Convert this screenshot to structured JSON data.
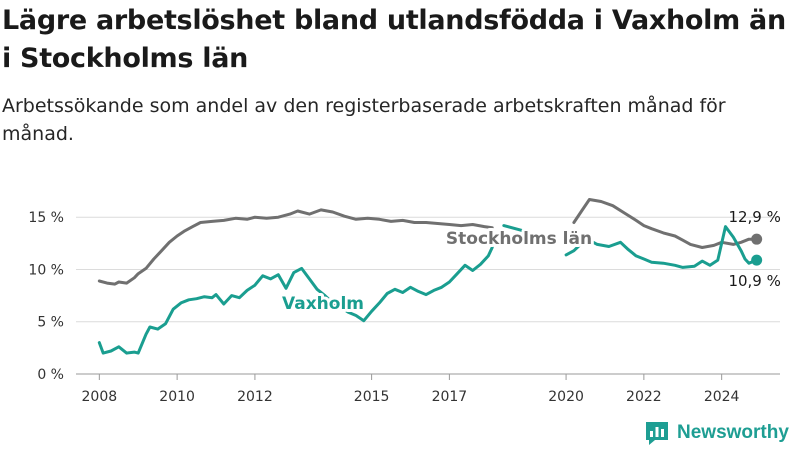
{
  "title": "Lägre arbetslöshet bland utlandsfödda i Vaxholm än i Stockholms län",
  "subtitle": "Arbetssökande som andel av den registerbaserade arbetskraften månad för månad.",
  "brand": {
    "name": "Newsworthy",
    "icon": "newsworthy-logo-icon",
    "color": "#1e9e93"
  },
  "chart_data": {
    "type": "line",
    "title": "Lägre arbetslöshet bland utlandsfödda i Vaxholm än i Stockholms län",
    "subtitle": "Arbetssökande som andel av den registerbaserade arbetskraften månad för månad.",
    "xlabel": "",
    "ylabel": "",
    "x_ticks": [
      {
        "value": 2008,
        "label": "2008"
      },
      {
        "value": 2010,
        "label": "2010"
      },
      {
        "value": 2012,
        "label": "2012"
      },
      {
        "value": 2015,
        "label": "2015"
      },
      {
        "value": 2017,
        "label": "2017"
      },
      {
        "value": 2020,
        "label": "2020"
      },
      {
        "value": 2022,
        "label": "2022"
      },
      {
        "value": 2024,
        "label": "2024"
      }
    ],
    "y_ticks": [
      {
        "value": 0,
        "label": "0 %"
      },
      {
        "value": 5,
        "label": "5 %"
      },
      {
        "value": 10,
        "label": "10 %"
      },
      {
        "value": 15,
        "label": "15 %"
      }
    ],
    "xlim": [
      2007.4,
      2025.5
    ],
    "ylim": [
      0,
      15.5
    ],
    "grid": true,
    "series": [
      {
        "name": "Stockholms län",
        "color": "#707070",
        "end_label": "12,9 %",
        "points": [
          [
            2008.0,
            8.9
          ],
          [
            2008.2,
            8.7
          ],
          [
            2008.4,
            8.6
          ],
          [
            2008.5,
            8.8
          ],
          [
            2008.7,
            8.7
          ],
          [
            2008.9,
            9.2
          ],
          [
            2009.0,
            9.6
          ],
          [
            2009.2,
            10.1
          ],
          [
            2009.4,
            11.0
          ],
          [
            2009.6,
            11.8
          ],
          [
            2009.8,
            12.6
          ],
          [
            2010.0,
            13.2
          ],
          [
            2010.2,
            13.7
          ],
          [
            2010.4,
            14.1
          ],
          [
            2010.6,
            14.5
          ],
          [
            2010.9,
            14.6
          ],
          [
            2011.2,
            14.7
          ],
          [
            2011.5,
            14.9
          ],
          [
            2011.8,
            14.8
          ],
          [
            2012.0,
            15.0
          ],
          [
            2012.3,
            14.9
          ],
          [
            2012.6,
            15.0
          ],
          [
            2012.9,
            15.3
          ],
          [
            2013.1,
            15.6
          ],
          [
            2013.4,
            15.3
          ],
          [
            2013.7,
            15.7
          ],
          [
            2014.0,
            15.5
          ],
          [
            2014.3,
            15.1
          ],
          [
            2014.6,
            14.8
          ],
          [
            2014.9,
            14.9
          ],
          [
            2015.2,
            14.8
          ],
          [
            2015.5,
            14.6
          ],
          [
            2015.8,
            14.7
          ],
          [
            2016.1,
            14.5
          ],
          [
            2016.4,
            14.5
          ],
          [
            2016.7,
            14.4
          ],
          [
            2017.0,
            14.3
          ],
          [
            2017.3,
            14.2
          ],
          [
            2017.6,
            14.3
          ],
          [
            2017.9,
            14.1
          ],
          [
            2018.1,
            14.0
          ]
        ],
        "points_late": [
          [
            2020.2,
            14.5
          ],
          [
            2020.4,
            15.6
          ],
          [
            2020.6,
            16.7
          ],
          [
            2020.9,
            16.5
          ],
          [
            2021.2,
            16.1
          ],
          [
            2021.5,
            15.4
          ],
          [
            2021.8,
            14.7
          ],
          [
            2022.0,
            14.2
          ],
          [
            2022.2,
            13.9
          ],
          [
            2022.5,
            13.5
          ],
          [
            2022.8,
            13.2
          ],
          [
            2023.0,
            12.8
          ],
          [
            2023.2,
            12.4
          ],
          [
            2023.5,
            12.1
          ],
          [
            2023.8,
            12.3
          ],
          [
            2024.0,
            12.6
          ],
          [
            2024.3,
            12.4
          ],
          [
            2024.5,
            12.6
          ],
          [
            2024.7,
            12.9
          ],
          [
            2024.9,
            12.9
          ]
        ]
      },
      {
        "name": "Vaxholm",
        "color": "#1a9e90",
        "end_label": "10,9 %",
        "points": [
          [
            2008.0,
            3.0
          ],
          [
            2008.1,
            2.0
          ],
          [
            2008.3,
            2.2
          ],
          [
            2008.5,
            2.6
          ],
          [
            2008.7,
            2.0
          ],
          [
            2008.9,
            2.1
          ],
          [
            2009.0,
            2.0
          ],
          [
            2009.2,
            3.8
          ],
          [
            2009.3,
            4.5
          ],
          [
            2009.5,
            4.3
          ],
          [
            2009.7,
            4.8
          ],
          [
            2009.9,
            6.2
          ],
          [
            2010.1,
            6.8
          ],
          [
            2010.3,
            7.1
          ],
          [
            2010.5,
            7.2
          ],
          [
            2010.7,
            7.4
          ],
          [
            2010.9,
            7.3
          ],
          [
            2011.0,
            7.6
          ],
          [
            2011.2,
            6.7
          ],
          [
            2011.4,
            7.5
          ],
          [
            2011.6,
            7.3
          ],
          [
            2011.8,
            8.0
          ],
          [
            2012.0,
            8.5
          ],
          [
            2012.2,
            9.4
          ],
          [
            2012.4,
            9.1
          ],
          [
            2012.6,
            9.5
          ],
          [
            2012.8,
            8.2
          ],
          [
            2013.0,
            9.7
          ],
          [
            2013.2,
            10.1
          ],
          [
            2013.4,
            9.1
          ],
          [
            2013.6,
            8.1
          ],
          [
            2013.8,
            7.5
          ],
          [
            2014.0,
            6.8
          ],
          [
            2014.2,
            6.4
          ],
          [
            2014.4,
            5.9
          ],
          [
            2014.6,
            5.6
          ],
          [
            2014.8,
            5.1
          ],
          [
            2015.0,
            6.0
          ],
          [
            2015.2,
            6.8
          ],
          [
            2015.4,
            7.7
          ],
          [
            2015.6,
            8.1
          ],
          [
            2015.8,
            7.8
          ],
          [
            2016.0,
            8.3
          ],
          [
            2016.2,
            7.9
          ],
          [
            2016.4,
            7.6
          ],
          [
            2016.6,
            8.0
          ],
          [
            2016.8,
            8.3
          ],
          [
            2017.0,
            8.8
          ],
          [
            2017.2,
            9.6
          ],
          [
            2017.4,
            10.4
          ],
          [
            2017.6,
            9.9
          ],
          [
            2017.8,
            10.5
          ],
          [
            2018.0,
            11.3
          ],
          [
            2018.1,
            12.1
          ]
        ],
        "points_late": [
          [
            2020.0,
            11.4
          ],
          [
            2020.2,
            11.8
          ],
          [
            2020.4,
            12.5
          ],
          [
            2020.6,
            12.8
          ],
          [
            2020.8,
            12.4
          ],
          [
            2021.1,
            12.2
          ],
          [
            2021.4,
            12.6
          ],
          [
            2021.6,
            11.9
          ],
          [
            2021.8,
            11.3
          ],
          [
            2022.0,
            11.0
          ],
          [
            2022.2,
            10.7
          ],
          [
            2022.5,
            10.6
          ],
          [
            2022.8,
            10.4
          ],
          [
            2023.0,
            10.2
          ],
          [
            2023.3,
            10.3
          ],
          [
            2023.5,
            10.8
          ],
          [
            2023.7,
            10.4
          ],
          [
            2023.9,
            10.9
          ],
          [
            2024.1,
            14.1
          ],
          [
            2024.3,
            13.1
          ],
          [
            2024.5,
            11.8
          ],
          [
            2024.6,
            11.0
          ],
          [
            2024.7,
            10.6
          ],
          [
            2024.9,
            10.9
          ]
        ],
        "points_gap": [
          [
            2018.4,
            14.2
          ],
          [
            2018.9,
            13.7
          ]
        ]
      }
    ],
    "annotations": [
      {
        "text": "Stockholms län",
        "series": "Stockholms län"
      },
      {
        "text": "Vaxholm",
        "series": "Vaxholm"
      }
    ]
  }
}
